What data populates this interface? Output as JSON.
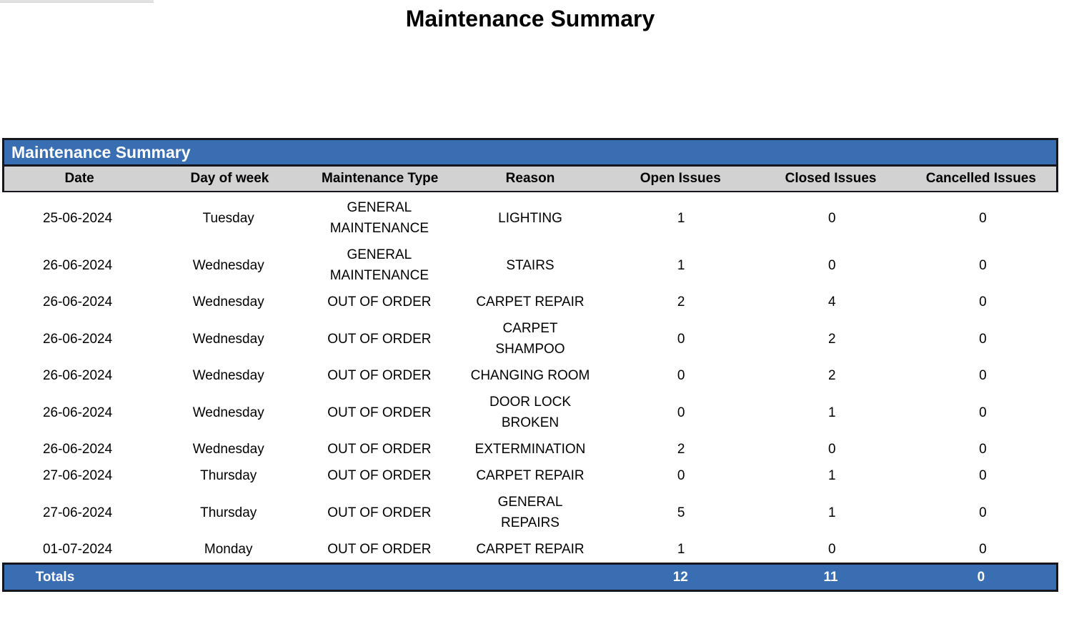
{
  "page_title": "Maintenance Summary",
  "table": {
    "title": "Maintenance Summary",
    "columns": [
      "Date",
      "Day of week",
      "Maintenance Type",
      "Reason",
      "Open Issues",
      "Closed Issues",
      "Cancelled Issues"
    ],
    "rows": [
      {
        "date": "25-06-2024",
        "day": "Tuesday",
        "type": "GENERAL\nMAINTENANCE",
        "reason": "LIGHTING",
        "open": "1",
        "closed": "0",
        "cancelled": "0"
      },
      {
        "date": "26-06-2024",
        "day": "Wednesday",
        "type": "GENERAL\nMAINTENANCE",
        "reason": "STAIRS",
        "open": "1",
        "closed": "0",
        "cancelled": "0"
      },
      {
        "date": "26-06-2024",
        "day": "Wednesday",
        "type": "OUT OF ORDER",
        "reason": "CARPET REPAIR",
        "open": "2",
        "closed": "4",
        "cancelled": "0"
      },
      {
        "date": "26-06-2024",
        "day": "Wednesday",
        "type": "OUT OF ORDER",
        "reason": "CARPET\nSHAMPOO",
        "open": "0",
        "closed": "2",
        "cancelled": "0"
      },
      {
        "date": "26-06-2024",
        "day": "Wednesday",
        "type": "OUT OF ORDER",
        "reason": "CHANGING ROOM",
        "open": "0",
        "closed": "2",
        "cancelled": "0"
      },
      {
        "date": "26-06-2024",
        "day": "Wednesday",
        "type": "OUT OF ORDER",
        "reason": "DOOR LOCK\nBROKEN",
        "open": "0",
        "closed": "1",
        "cancelled": "0"
      },
      {
        "date": "26-06-2024",
        "day": "Wednesday",
        "type": "OUT OF ORDER",
        "reason": "EXTERMINATION",
        "open": "2",
        "closed": "0",
        "cancelled": "0"
      },
      {
        "date": "27-06-2024",
        "day": "Thursday",
        "type": "OUT OF ORDER",
        "reason": "CARPET REPAIR",
        "open": "0",
        "closed": "1",
        "cancelled": "0"
      },
      {
        "date": "27-06-2024",
        "day": "Thursday",
        "type": "OUT OF ORDER",
        "reason": "GENERAL\nREPAIRS",
        "open": "5",
        "closed": "1",
        "cancelled": "0"
      },
      {
        "date": "01-07-2024",
        "day": "Monday",
        "type": "OUT OF ORDER",
        "reason": "CARPET REPAIR",
        "open": "1",
        "closed": "0",
        "cancelled": "0"
      }
    ],
    "totals": {
      "label": "Totals",
      "open": "12",
      "closed": "11",
      "cancelled": "0"
    }
  },
  "colors": {
    "accent_blue": "#3a6eb3",
    "header_gray": "#d2d2d2",
    "border_dark": "#16161e",
    "totals_text": "#ffffff"
  }
}
